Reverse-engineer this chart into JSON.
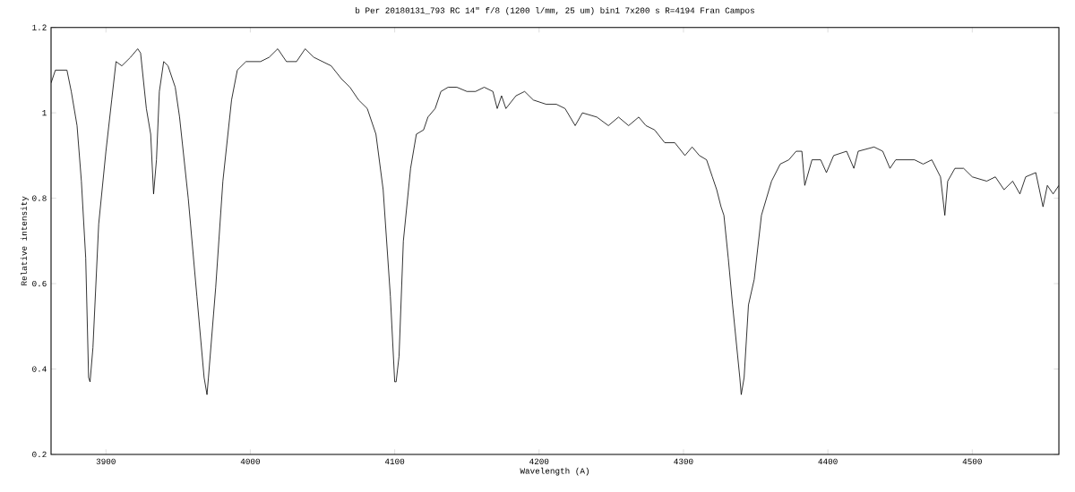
{
  "chart_data": {
    "type": "line",
    "title": "b Per  20180131_793   RC 14\" f/8   (1200 l/mm, 25 um)   bin1   7x200 s   R=4194   Fran Campos",
    "xlabel": "Wavelength (A)",
    "ylabel": "Relative intensity",
    "xlim": [
      3862,
      4560
    ],
    "ylim": [
      0.2,
      1.2
    ],
    "xticks": [
      3900,
      4000,
      4100,
      4200,
      4300,
      4400,
      4500
    ],
    "yticks": [
      0.2,
      0.4,
      0.6,
      0.8,
      1,
      1.2
    ],
    "grid": false,
    "series": [
      {
        "color": "#000000",
        "x": [
          3862,
          3865,
          3869,
          3873,
          3876,
          3880,
          3883,
          3886,
          3888,
          3889,
          3891,
          3895,
          3900,
          3904,
          3907,
          3911,
          3917,
          3922,
          3924,
          3928,
          3931,
          3933,
          3935,
          3937,
          3940,
          3943,
          3948,
          3951,
          3957,
          3963,
          3968,
          3970,
          3971,
          3976,
          3981,
          3987,
          3991,
          3997,
          4007,
          4013,
          4019,
          4025,
          4032,
          4038,
          4044,
          4050,
          4056,
          4063,
          4069,
          4075,
          4081,
          4087,
          4092,
          4097,
          4100,
          4101,
          4103,
          4106,
          4111,
          4115,
          4120,
          4123,
          4128,
          4132,
          4137,
          4143,
          4150,
          4156,
          4162,
          4168,
          4171,
          4174,
          4177,
          4184,
          4190,
          4196,
          4205,
          4212,
          4218,
          4225,
          4230,
          4240,
          4248,
          4255,
          4262,
          4269,
          4274,
          4280,
          4287,
          4294,
          4301,
          4306,
          4311,
          4316,
          4320,
          4323,
          4326,
          4328,
          4331,
          4334,
          4339,
          4340,
          4342,
          4345,
          4349,
          4354,
          4361,
          4367,
          4373,
          4378,
          4382,
          4384,
          4389,
          4395,
          4399,
          4404,
          4413,
          4418,
          4421,
          4432,
          4438,
          4443,
          4447,
          4454,
          4460,
          4466,
          4472,
          4478,
          4481,
          4483,
          4488,
          4494,
          4500,
          4510,
          4516,
          4522,
          4528,
          4533,
          4537,
          4544,
          4549,
          4552,
          4556,
          4560
        ],
        "values": [
          1.07,
          1.1,
          1.1,
          1.1,
          1.05,
          0.97,
          0.84,
          0.66,
          0.38,
          0.37,
          0.45,
          0.74,
          0.91,
          1.03,
          1.12,
          1.11,
          1.13,
          1.15,
          1.14,
          1.01,
          0.95,
          0.81,
          0.89,
          1.05,
          1.12,
          1.11,
          1.06,
          0.99,
          0.8,
          0.57,
          0.38,
          0.34,
          0.38,
          0.59,
          0.84,
          1.03,
          1.1,
          1.12,
          1.12,
          1.13,
          1.15,
          1.12,
          1.12,
          1.15,
          1.13,
          1.12,
          1.11,
          1.08,
          1.06,
          1.03,
          1.01,
          0.95,
          0.82,
          0.57,
          0.37,
          0.37,
          0.43,
          0.7,
          0.87,
          0.95,
          0.96,
          0.99,
          1.01,
          1.05,
          1.06,
          1.06,
          1.05,
          1.05,
          1.06,
          1.05,
          1.01,
          1.04,
          1.01,
          1.04,
          1.05,
          1.03,
          1.02,
          1.02,
          1.01,
          0.97,
          1.0,
          0.99,
          0.97,
          0.99,
          0.97,
          0.99,
          0.97,
          0.96,
          0.93,
          0.93,
          0.9,
          0.92,
          0.9,
          0.89,
          0.85,
          0.82,
          0.78,
          0.76,
          0.66,
          0.55,
          0.38,
          0.34,
          0.38,
          0.55,
          0.61,
          0.76,
          0.84,
          0.88,
          0.89,
          0.91,
          0.91,
          0.83,
          0.89,
          0.89,
          0.86,
          0.9,
          0.91,
          0.87,
          0.91,
          0.92,
          0.91,
          0.87,
          0.89,
          0.89,
          0.89,
          0.88,
          0.89,
          0.85,
          0.76,
          0.84,
          0.87,
          0.87,
          0.85,
          0.84,
          0.85,
          0.82,
          0.84,
          0.81,
          0.85,
          0.86,
          0.78,
          0.83,
          0.81,
          0.83
        ]
      }
    ]
  }
}
